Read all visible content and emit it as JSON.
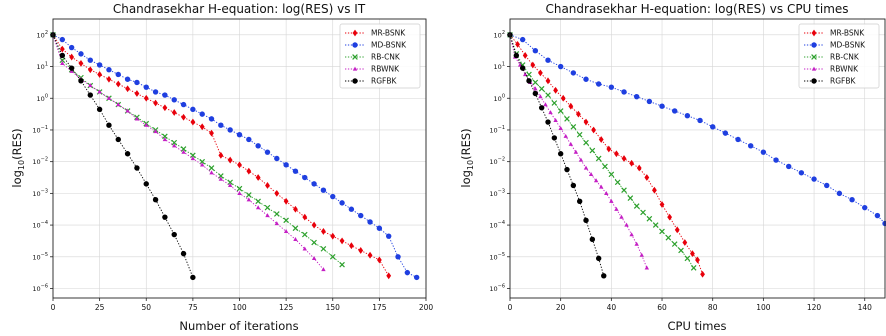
{
  "colors": {
    "MR-BSNK": "#e8000b",
    "MD-BSNK": "#1f3fe0",
    "RB-CNK": "#2ca02c",
    "RBWNK": "#c41fc4",
    "RGFBK": "#000000"
  },
  "chart_data": [
    {
      "type": "line",
      "title": "Chandrasekhar H-equation: log(RES) vs IT",
      "xlabel": "Number of iterations",
      "ylabel": "log10(RES)",
      "yscale": "log",
      "xlim": [
        0,
        200
      ],
      "ylim_exponent": [
        -6.3,
        2.5
      ],
      "xticks": [
        0,
        25,
        50,
        75,
        100,
        125,
        150,
        175,
        200
      ],
      "yticks_exponent": [
        -6,
        -5,
        -4,
        -3,
        -2,
        -1,
        0,
        1,
        2
      ],
      "grid": true,
      "legend_position": "top-right",
      "series": [
        {
          "name": "MR-BSNK",
          "marker": "diamond",
          "x": [
            0,
            5,
            10,
            15,
            20,
            25,
            30,
            35,
            40,
            45,
            50,
            55,
            60,
            65,
            70,
            75,
            80,
            85,
            90,
            95,
            100,
            105,
            110,
            115,
            120,
            125,
            130,
            135,
            140,
            145,
            150,
            155,
            160,
            165,
            170,
            175,
            180
          ],
          "y_exponent": [
            2,
            1.55,
            1.3,
            1.1,
            0.9,
            0.75,
            0.6,
            0.45,
            0.3,
            0.15,
            0,
            -0.15,
            -0.3,
            -0.45,
            -0.6,
            -0.75,
            -0.9,
            -1.1,
            -1.8,
            -1.95,
            -2.1,
            -2.3,
            -2.5,
            -2.75,
            -3,
            -3.25,
            -3.5,
            -3.75,
            -4,
            -4.2,
            -4.35,
            -4.5,
            -4.65,
            -4.8,
            -4.95,
            -5.1,
            -5.6
          ]
        },
        {
          "name": "MD-BSNK",
          "marker": "circle",
          "x": [
            0,
            5,
            10,
            15,
            20,
            25,
            30,
            35,
            40,
            45,
            50,
            55,
            60,
            65,
            70,
            75,
            80,
            85,
            90,
            95,
            100,
            105,
            110,
            115,
            120,
            125,
            130,
            135,
            140,
            145,
            150,
            155,
            160,
            165,
            170,
            175,
            180,
            185,
            190,
            195
          ],
          "y_exponent": [
            2,
            1.85,
            1.6,
            1.4,
            1.2,
            1.05,
            0.9,
            0.75,
            0.6,
            0.5,
            0.35,
            0.2,
            0.1,
            -0.05,
            -0.2,
            -0.35,
            -0.5,
            -0.65,
            -0.85,
            -1,
            -1.15,
            -1.3,
            -1.5,
            -1.7,
            -1.9,
            -2.1,
            -2.3,
            -2.5,
            -2.7,
            -2.9,
            -3.1,
            -3.3,
            -3.5,
            -3.7,
            -3.9,
            -4.1,
            -4.35,
            -5,
            -5.5,
            -5.65
          ]
        },
        {
          "name": "RB-CNK",
          "marker": "x",
          "x": [
            0,
            5,
            10,
            15,
            20,
            25,
            30,
            35,
            40,
            45,
            50,
            55,
            60,
            65,
            70,
            75,
            80,
            85,
            90,
            95,
            100,
            105,
            110,
            115,
            120,
            125,
            130,
            135,
            140,
            145,
            150,
            155
          ],
          "y_exponent": [
            2,
            1.2,
            0.9,
            0.65,
            0.4,
            0.2,
            0,
            -0.2,
            -0.4,
            -0.6,
            -0.8,
            -1,
            -1.2,
            -1.4,
            -1.6,
            -1.8,
            -2,
            -2.2,
            -2.45,
            -2.65,
            -2.85,
            -3.05,
            -3.25,
            -3.45,
            -3.65,
            -3.85,
            -4.1,
            -4.3,
            -4.55,
            -4.75,
            -5,
            -5.25
          ]
        },
        {
          "name": "RBWNK",
          "marker": "triangle",
          "x": [
            0,
            5,
            10,
            15,
            20,
            25,
            30,
            35,
            40,
            45,
            50,
            55,
            60,
            65,
            70,
            75,
            80,
            85,
            90,
            95,
            100,
            105,
            110,
            115,
            120,
            125,
            130,
            135,
            140,
            145
          ],
          "y_exponent": [
            2,
            1.1,
            0.85,
            0.6,
            0.4,
            0.2,
            0,
            -0.2,
            -0.4,
            -0.65,
            -0.85,
            -1.05,
            -1.3,
            -1.5,
            -1.7,
            -1.9,
            -2.1,
            -2.35,
            -2.55,
            -2.75,
            -3,
            -3.2,
            -3.45,
            -3.7,
            -3.95,
            -4.2,
            -4.45,
            -4.75,
            -5.05,
            -5.4
          ]
        },
        {
          "name": "RGFBK",
          "marker": "circle",
          "x": [
            0,
            5,
            10,
            15,
            20,
            25,
            30,
            35,
            40,
            45,
            50,
            55,
            60,
            65,
            70,
            75
          ],
          "y_exponent": [
            2,
            1.35,
            0.95,
            0.55,
            0.1,
            -0.35,
            -0.85,
            -1.3,
            -1.75,
            -2.2,
            -2.7,
            -3.2,
            -3.75,
            -4.3,
            -4.9,
            -5.65
          ]
        }
      ]
    },
    {
      "type": "line",
      "title": "Chandrasekhar H-equation: log(RES) vs CPU times",
      "xlabel": "CPU times",
      "ylabel": "log10(RES)",
      "yscale": "log",
      "xlim": [
        0,
        148
      ],
      "ylim_exponent": [
        -6.3,
        2.5
      ],
      "xticks": [
        0,
        20,
        40,
        60,
        80,
        100,
        120,
        140
      ],
      "yticks_exponent": [
        -6,
        -5,
        -4,
        -3,
        -2,
        -1,
        0,
        1,
        2
      ],
      "grid": true,
      "legend_position": "top-right",
      "series": [
        {
          "name": "MR-BSNK",
          "marker": "diamond",
          "x": [
            0,
            3,
            6,
            9,
            12,
            15,
            18,
            21,
            24,
            27,
            30,
            33,
            36,
            39,
            42,
            45,
            48,
            51,
            54,
            57,
            60,
            63,
            66,
            69,
            72,
            74,
            76
          ],
          "y_exponent": [
            2,
            1.7,
            1.35,
            1.05,
            0.8,
            0.55,
            0.25,
            0,
            -0.25,
            -0.5,
            -0.75,
            -1,
            -1.3,
            -1.6,
            -1.75,
            -1.9,
            -2.05,
            -2.2,
            -2.5,
            -2.9,
            -3.35,
            -3.75,
            -4.15,
            -4.55,
            -4.9,
            -5.1,
            -5.55
          ]
        },
        {
          "name": "MD-BSNK",
          "marker": "circle",
          "x": [
            0,
            5,
            10,
            15,
            20,
            25,
            30,
            35,
            40,
            45,
            50,
            55,
            60,
            65,
            70,
            75,
            80,
            85,
            90,
            95,
            100,
            105,
            110,
            115,
            120,
            125,
            130,
            135,
            140,
            145,
            148
          ],
          "y_exponent": [
            2,
            1.85,
            1.5,
            1.2,
            1,
            0.8,
            0.6,
            0.45,
            0.35,
            0.2,
            0.05,
            -0.1,
            -0.25,
            -0.4,
            -0.55,
            -0.7,
            -0.9,
            -1.1,
            -1.3,
            -1.5,
            -1.7,
            -1.95,
            -2.15,
            -2.35,
            -2.55,
            -2.75,
            -3,
            -3.2,
            -3.45,
            -3.7,
            -3.95
          ]
        },
        {
          "name": "RB-CNK",
          "marker": "x",
          "x": [
            0,
            2.5,
            5,
            7.5,
            10,
            12.5,
            15,
            17.5,
            20,
            22.5,
            25,
            27.5,
            30,
            32.5,
            35,
            37.5,
            40,
            42.5,
            45,
            47.5,
            50,
            52.5,
            55,
            57.5,
            60,
            62.5,
            65,
            67.5,
            70,
            72.5
          ],
          "y_exponent": [
            2,
            1.4,
            1.05,
            0.75,
            0.5,
            0.3,
            0.1,
            -0.15,
            -0.4,
            -0.65,
            -0.9,
            -1.15,
            -1.4,
            -1.65,
            -1.9,
            -2.15,
            -2.4,
            -2.65,
            -2.9,
            -3.15,
            -3.4,
            -3.6,
            -3.8,
            -4,
            -4.2,
            -4.4,
            -4.6,
            -4.8,
            -5.05,
            -5.35
          ]
        },
        {
          "name": "RBWNK",
          "marker": "triangle",
          "x": [
            0,
            2,
            4,
            6,
            8,
            10,
            12,
            14,
            16,
            18,
            20,
            22,
            24,
            26,
            28,
            30,
            32,
            34,
            36,
            38,
            40,
            42,
            44,
            46,
            48,
            50,
            52,
            54
          ],
          "y_exponent": [
            2,
            1.3,
            1.05,
            0.75,
            0.5,
            0.3,
            0.05,
            -0.2,
            -0.45,
            -0.7,
            -0.95,
            -1.2,
            -1.45,
            -1.7,
            -1.95,
            -2.2,
            -2.4,
            -2.6,
            -2.8,
            -3,
            -3.25,
            -3.5,
            -3.75,
            -4,
            -4.3,
            -4.6,
            -4.95,
            -5.35
          ]
        },
        {
          "name": "RGFBK",
          "marker": "circle",
          "x": [
            0,
            2.5,
            5,
            7.5,
            10,
            12.5,
            15,
            17.5,
            20,
            22.5,
            25,
            27.5,
            30,
            32.5,
            35,
            37
          ],
          "y_exponent": [
            2,
            1.35,
            0.95,
            0.55,
            0.15,
            -0.3,
            -0.75,
            -1.25,
            -1.75,
            -2.25,
            -2.75,
            -3.25,
            -3.85,
            -4.45,
            -5.05,
            -5.6
          ]
        }
      ]
    }
  ],
  "ytick_base": "10",
  "ylabel_parts": {
    "pre": "log",
    "sub": "10",
    "post": "(RES)"
  },
  "plot1": {
    "title": "Chandrasekhar H-equation: log(RES) vs IT",
    "xlabel": "Number of iterations",
    "xtick_labels": [
      "0",
      "25",
      "50",
      "75",
      "100",
      "125",
      "150",
      "175",
      "200"
    ],
    "legend": [
      "MR-BSNK",
      "MD-BSNK",
      "RB-CNK",
      "RBWNK",
      "RGFBK"
    ]
  },
  "plot2": {
    "title": "Chandrasekhar H-equation: log(RES) vs CPU times",
    "xlabel": "CPU times",
    "xtick_labels": [
      "0",
      "20",
      "40",
      "60",
      "80",
      "100",
      "120",
      "140"
    ],
    "legend": [
      "MR-BSNK",
      "MD-BSNK",
      "RB-CNK",
      "RBWNK",
      "RGFBK"
    ]
  }
}
